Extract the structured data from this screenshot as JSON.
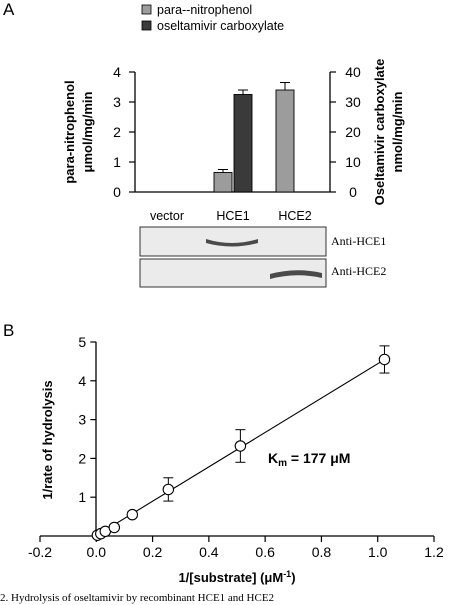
{
  "panel_a": {
    "letter": "A",
    "lanes": [
      "vector",
      "HCE1",
      "HCE2"
    ],
    "blots": [
      {
        "label": "Anti-HCE1",
        "band_lane": "HCE1"
      },
      {
        "label": "Anti-HCE2",
        "band_lane": "HCE2"
      }
    ]
  },
  "panel_b": {
    "letter": "B",
    "km_prefix": "K",
    "km_sub": "m",
    "km_value": " = 177 μM"
  },
  "caption": "2. Hydrolysis of oseltamivir by recombinant HCE1 and HCE2",
  "colors": {
    "para_nitrophenol": "#9c9c9c",
    "oseltamivir_carboxylate": "#3a3a3a",
    "band": "#4a4a4a",
    "blot_bg": "#ebebeb"
  },
  "chart_data": [
    {
      "type": "bar",
      "categories": [
        "vector",
        "HCE1",
        "HCE2"
      ],
      "series": [
        {
          "name": "para--nitrophenol",
          "axis": "left",
          "values": [
            0,
            0.65,
            3.4
          ],
          "errors": [
            0,
            0.1,
            0.25
          ]
        },
        {
          "name": "oseltamivir carboxylate",
          "axis": "right",
          "values": [
            0,
            32.5,
            0
          ],
          "errors": [
            0,
            1.5,
            0
          ]
        }
      ],
      "ylabel_line1": "para-nitrophenol",
      "ylabel_line2": "μmol/mg/min",
      "ylim": [
        0,
        4
      ],
      "yticks": [
        0,
        1,
        2,
        3,
        4
      ],
      "y2label_line1": "Oseltamivir carboxylate",
      "y2label_line2": "nmol/mg/min",
      "y2lim": [
        0,
        40
      ],
      "y2ticks": [
        0,
        10,
        20,
        30,
        40
      ],
      "legend": "top"
    },
    {
      "type": "scatter",
      "xlabel_main": "1/[substrate] (μM",
      "xlabel_exp": "-1",
      "xlabel_close": ")",
      "ylabel": "1/rate of hydrolysis",
      "xlim": [
        -0.2,
        1.2
      ],
      "ylim": [
        0,
        5
      ],
      "xticks": [
        "-0.2",
        "0.0",
        "0.2",
        "0.4",
        "0.6",
        "0.8",
        "1.0",
        "1.2"
      ],
      "yticks": [
        "1",
        "2",
        "3",
        "4",
        "5"
      ],
      "x": [
        0.004,
        0.016,
        0.032,
        0.064,
        0.128,
        0.256,
        0.512,
        1.024
      ],
      "y": [
        0.02,
        0.06,
        0.12,
        0.22,
        0.55,
        1.2,
        2.32,
        4.55
      ],
      "errors": [
        0,
        0,
        0,
        0,
        0.07,
        0.3,
        0.42,
        0.35
      ],
      "fit": {
        "slope": 4.43,
        "intercept": 0.01,
        "x_end": 1.03
      }
    }
  ]
}
